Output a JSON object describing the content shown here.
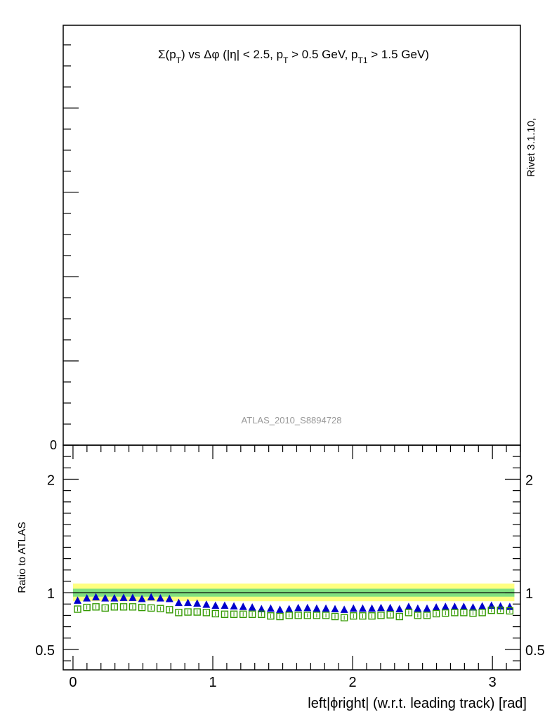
{
  "chart_data": [
    {
      "panel": "main",
      "type": "line",
      "title": "Σ(p_T) vs Δφ (|η| < 2.5, p_T > 0.5 GeV, p_T1 > 1.5 GeV)",
      "title_parts": {
        "p1": "Σ(p",
        "s1": "T",
        "p2": ") vs Δφ (|η| < 2.5, p",
        "s2": "T",
        "p3": " > 0.5 GeV, p",
        "s3": "T1",
        "p4": " > 1.5 GeV)"
      },
      "analysis_label": "ATLAS_2010_S8894728",
      "side_label": "Rivet 3.1.10,",
      "y_tick_labels": [
        "0"
      ],
      "series": []
    },
    {
      "panel": "ratio",
      "type": "scatter",
      "xlabel": "left|ϕright| (w.r.t. leading track) [rad]",
      "ylabel": "Ratio to ATLAS",
      "xlim": [
        -0.07,
        3.2
      ],
      "ylim": [
        0.32,
        2.3
      ],
      "x_ticks": [
        0,
        1,
        2,
        3
      ],
      "x_tick_labels": [
        "0",
        "1",
        "2",
        "3"
      ],
      "y_ticks": [
        0.5,
        1,
        2
      ],
      "y_tick_labels": [
        "0.5",
        "1",
        "2"
      ],
      "reference_line": 1.0,
      "bands": [
        {
          "color": "#ffff80",
          "lo": 0.925,
          "hi": 1.08
        },
        {
          "color": "#80e080",
          "lo": 0.965,
          "hi": 1.035
        }
      ],
      "x": [
        0.033,
        0.099,
        0.164,
        0.23,
        0.296,
        0.362,
        0.427,
        0.493,
        0.559,
        0.625,
        0.69,
        0.756,
        0.822,
        0.888,
        0.954,
        1.019,
        1.085,
        1.151,
        1.217,
        1.282,
        1.348,
        1.414,
        1.48,
        1.546,
        1.611,
        1.677,
        1.743,
        1.809,
        1.874,
        1.94,
        2.006,
        2.072,
        2.138,
        2.203,
        2.269,
        2.335,
        2.401,
        2.466,
        2.532,
        2.598,
        2.664,
        2.73,
        2.795,
        2.861,
        2.927,
        2.993,
        3.058,
        3.124
      ],
      "series": [
        {
          "color": "#0000cc",
          "marker": "triangle",
          "values": [
            0.93,
            0.95,
            0.96,
            0.95,
            0.95,
            0.955,
            0.955,
            0.945,
            0.96,
            0.95,
            0.945,
            0.91,
            0.91,
            0.905,
            0.895,
            0.885,
            0.885,
            0.88,
            0.875,
            0.87,
            0.855,
            0.86,
            0.85,
            0.855,
            0.865,
            0.865,
            0.86,
            0.86,
            0.855,
            0.85,
            0.86,
            0.86,
            0.86,
            0.865,
            0.865,
            0.855,
            0.875,
            0.86,
            0.86,
            0.87,
            0.875,
            0.875,
            0.875,
            0.87,
            0.88,
            0.885,
            0.88,
            0.875
          ]
        },
        {
          "color": "#339900",
          "marker": "open-square",
          "values": [
            0.855,
            0.87,
            0.875,
            0.865,
            0.875,
            0.875,
            0.875,
            0.87,
            0.865,
            0.86,
            0.85,
            0.825,
            0.83,
            0.83,
            0.825,
            0.815,
            0.81,
            0.81,
            0.81,
            0.81,
            0.81,
            0.795,
            0.79,
            0.8,
            0.8,
            0.8,
            0.8,
            0.8,
            0.79,
            0.78,
            0.795,
            0.795,
            0.795,
            0.8,
            0.805,
            0.79,
            0.825,
            0.8,
            0.8,
            0.815,
            0.82,
            0.825,
            0.825,
            0.82,
            0.825,
            0.845,
            0.845,
            0.84
          ]
        }
      ]
    }
  ]
}
